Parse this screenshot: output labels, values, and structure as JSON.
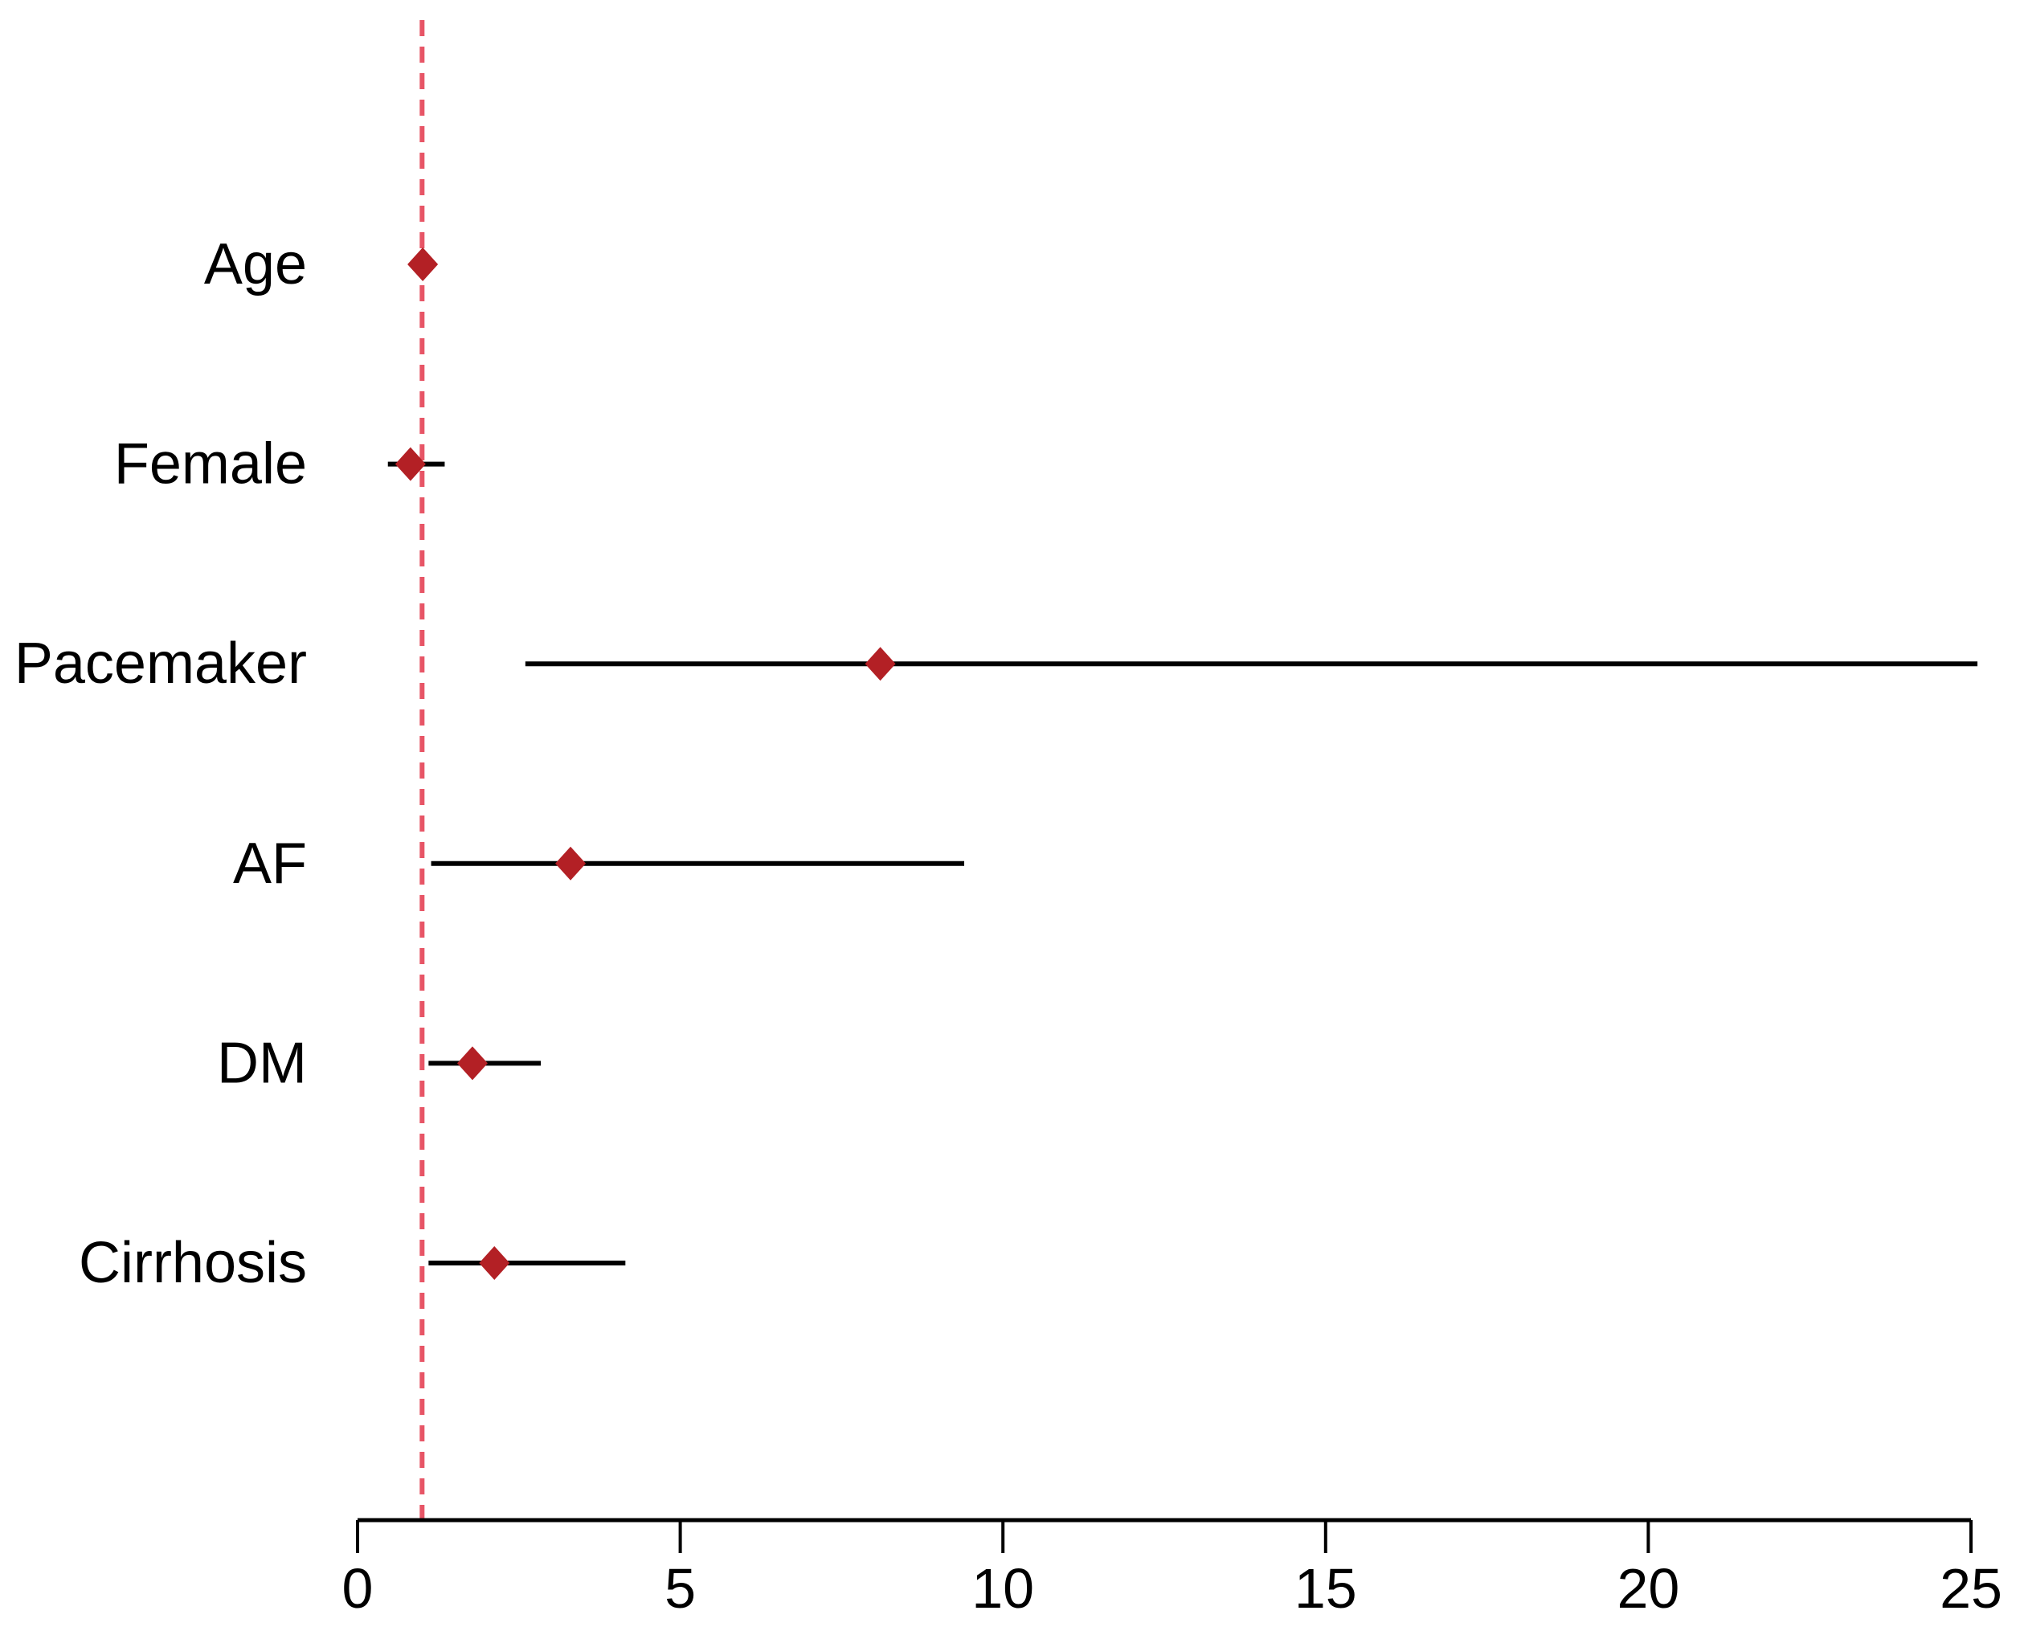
{
  "chart_data": {
    "type": "scatter",
    "subtype": "forest-plot",
    "title": "",
    "xlabel": "",
    "ylabel": "",
    "categories": [
      "Age",
      "Female",
      "Pacemaker",
      "AF",
      "DM",
      "Cirrhosis"
    ],
    "series": [
      {
        "name": "Age",
        "estimate": 1.01,
        "ci_low": 0.98,
        "ci_high": 1.04
      },
      {
        "name": "Female",
        "estimate": 0.82,
        "ci_low": 0.47,
        "ci_high": 1.35
      },
      {
        "name": "Pacemaker",
        "estimate": 8.1,
        "ci_low": 2.6,
        "ci_high": 25.1
      },
      {
        "name": "AF",
        "estimate": 3.3,
        "ci_low": 1.14,
        "ci_high": 9.4
      },
      {
        "name": "DM",
        "estimate": 1.78,
        "ci_low": 1.1,
        "ci_high": 2.84
      },
      {
        "name": "Cirrhosis",
        "estimate": 2.12,
        "ci_low": 1.1,
        "ci_high": 4.15
      }
    ],
    "x_ticks": [
      0,
      5,
      10,
      15,
      20,
      25
    ],
    "x_tick_labels": [
      "0",
      "5",
      "10",
      "15",
      "20",
      "25"
    ],
    "xlim": [
      0,
      25.1
    ],
    "reference_line": 1,
    "grid": false,
    "legend": false,
    "marker_shape": "diamond",
    "colors": {
      "marker": "#b32025",
      "reference_line": "#e75566",
      "ci_line": "#000000",
      "axis": "#000000",
      "text": "#000000",
      "background": "#ffffff"
    }
  }
}
